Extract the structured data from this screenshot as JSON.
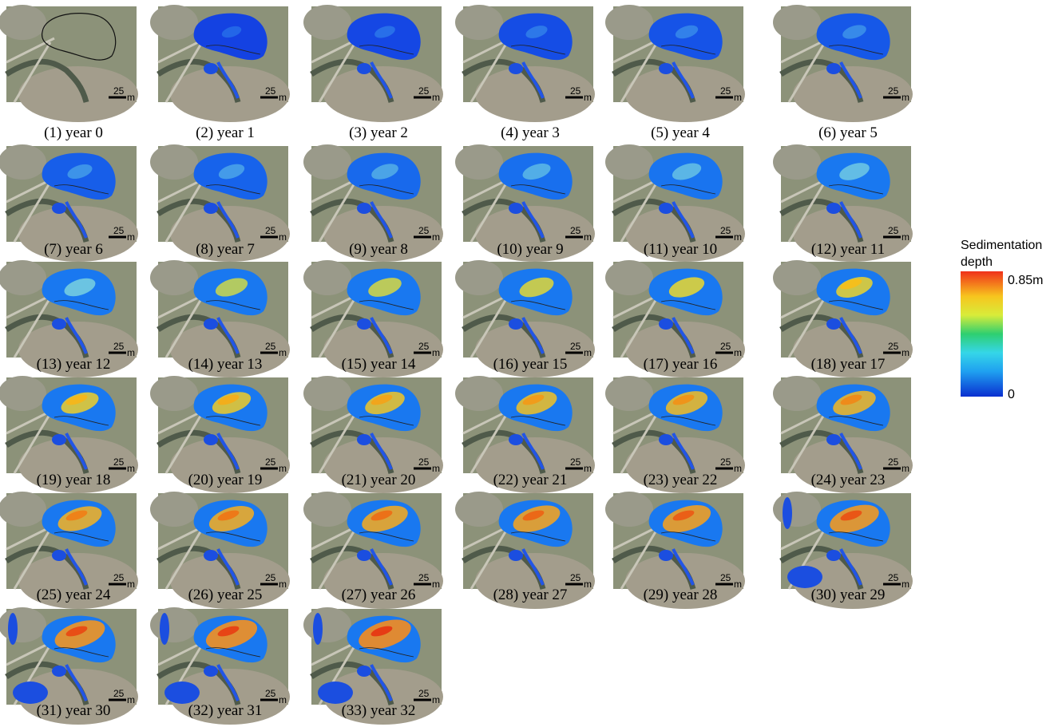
{
  "panels": [
    "(1) year 0",
    "(2) year 1",
    "(3) year 2",
    "(4)   year 3",
    "(5)  year 4",
    "(6) year 5",
    "(7)  year 6",
    "(8)  year 7",
    "(9)  year 8",
    "(10)   year 9",
    "(11)   year 10",
    "(12)  year 11",
    "(13) year 12",
    "(14) year 13",
    "(15) year 14",
    "(16) year 15",
    "(17) year 16",
    "(18) year 17",
    "(19) year 18",
    "(20) year 19",
    "(21) year 20",
    "(22) year 21",
    "(23) year 22",
    "(24) year 23",
    "(25) year 24",
    "(26) year 25",
    "(27) year 26",
    "(28) year 27",
    "(29) year 28",
    "(30) year 29",
    "(31) year 30",
    "(32) year 31",
    "(33) year 32"
  ],
  "scale_bar": {
    "length": "25",
    "unit": "m"
  },
  "legend": {
    "title": "Sedimentation depth",
    "max_label": "0.85m",
    "min_label": "0"
  }
}
